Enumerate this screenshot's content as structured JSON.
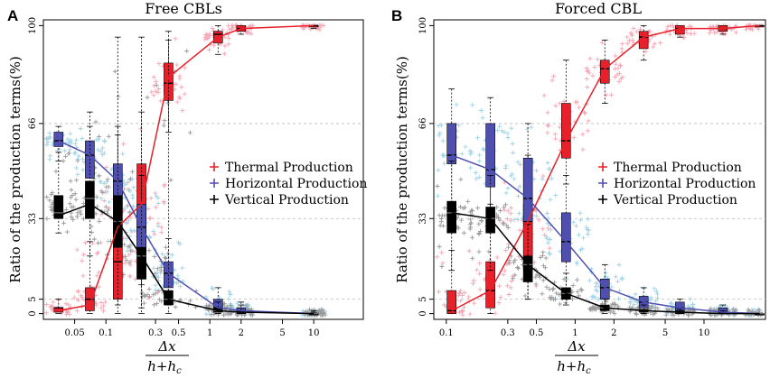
{
  "colors": {
    "thermal": "#e8202a",
    "horizontal": "#4f4fb0",
    "vertical": "#000000",
    "thermal_scatter": "#f4a6b4",
    "horizontal_scatter": "#9fd3e6",
    "vertical_scatter": "#999999",
    "grid": "#bbbbbb"
  },
  "chart_data": [
    {
      "panel_letter": "A",
      "type": "box-line",
      "title": "Free CBLs",
      "xlabel_numerator": "Δx",
      "xlabel_denominator": "h+h",
      "xlabel_subscript": "c",
      "ylabel": "Ratio of the production terms(%)",
      "x_scale": "log",
      "xlim": [
        0.025,
        30
      ],
      "ylim": [
        -2,
        102
      ],
      "yticks": [
        0,
        5,
        33,
        66,
        100
      ],
      "ytick_labels": [
        "0",
        "5",
        "33",
        "66",
        "100"
      ],
      "xticks": [
        0.05,
        0.1,
        0.3,
        0.5,
        1,
        2,
        5,
        10
      ],
      "xtick_labels": [
        "0.05",
        "0.1",
        "0.3",
        "0.5",
        "1",
        "2",
        "5",
        "10"
      ],
      "legend": {
        "position": "center-right",
        "entries": [
          "Thermal Production",
          "Horizontal Production",
          "Vertical Production"
        ]
      },
      "x": [
        0.035,
        0.07,
        0.13,
        0.22,
        0.4,
        1.2,
        2.0,
        10
      ],
      "series": [
        {
          "name": "Thermal Production",
          "values": [
            1,
            3,
            30,
            38,
            82,
            96,
            99,
            100
          ],
          "boxes": [
            [
              0,
              0.5,
              2,
              2,
              5
            ],
            [
              0,
              1,
              5,
              9,
              25
            ],
            [
              0,
              5,
              18,
              45,
              65
            ],
            [
              0,
              12,
              30,
              52,
              70
            ],
            [
              63,
              74,
              80,
              87,
              98
            ],
            [
              90,
              94,
              97,
              98,
              100
            ],
            [
              97,
              98,
              99,
              100,
              100
            ],
            [
              99,
              100,
              100,
              100,
              100
            ]
          ]
        },
        {
          "name": "Horizontal Production",
          "values": [
            60,
            55,
            46,
            30,
            14,
            2,
            1,
            0
          ],
          "boxes": [
            [
              53,
              58,
              60,
              63,
              65
            ],
            [
              40,
              47,
              55,
              60,
              65
            ],
            [
              25,
              35,
              46,
              52,
              62
            ],
            [
              10,
              21,
              30,
              38,
              48
            ],
            [
              3,
              9,
              14,
              18,
              26
            ],
            [
              0,
              1,
              2,
              5,
              9
            ],
            [
              0,
              0.5,
              1,
              2,
              4
            ],
            [
              0,
              0,
              0,
              0,
              1
            ]
          ]
        },
        {
          "name": "Vertical Production",
          "values": [
            34,
            38,
            32,
            20,
            5,
            1,
            0.5,
            0
          ],
          "boxes": [
            [
              28,
              33,
              35,
              41,
              56
            ],
            [
              20,
              33,
              40,
              46,
              70
            ],
            [
              3,
              23,
              32,
              41,
              96
            ],
            [
              2,
              12,
              20,
              23,
              96
            ],
            [
              0,
              3,
              5,
              8,
              95
            ],
            [
              0,
              0.5,
              1,
              2,
              4
            ],
            [
              0,
              0,
              0.5,
              1,
              3
            ],
            [
              0,
              0,
              0,
              0,
              0.5
            ]
          ]
        }
      ]
    },
    {
      "panel_letter": "B",
      "type": "box-line",
      "title": "Forced CBL",
      "xlabel_numerator": "Δx",
      "xlabel_denominator": "h+h",
      "xlabel_subscript": "c",
      "ylabel": "Ratio of the production terms(%)",
      "x_scale": "log",
      "xlim": [
        0.08,
        30
      ],
      "ylim": [
        -2,
        102
      ],
      "yticks": [
        0,
        5,
        33,
        66,
        100
      ],
      "ytick_labels": [
        "0",
        "5",
        "33",
        "66",
        "100"
      ],
      "xticks": [
        0.1,
        0.3,
        0.5,
        1,
        2,
        5,
        10
      ],
      "xtick_labels": [
        "0.1",
        "0.3",
        "0.5",
        "1",
        "2",
        "5",
        "10"
      ],
      "legend": {
        "position": "center-right",
        "entries": [
          "Thermal Production",
          "Horizontal Production",
          "Vertical Production"
        ]
      },
      "x": [
        0.11,
        0.22,
        0.43,
        0.85,
        1.7,
        3.4,
        6.5,
        14,
        27
      ],
      "series": [
        {
          "name": "Thermal Production",
          "values": [
            1,
            8,
            32,
            60,
            85,
            96,
            99,
            99,
            100
          ],
          "boxes": [
            [
              0,
              0,
              1,
              8,
              22
            ],
            [
              0,
              2,
              8,
              18,
              38
            ],
            [
              5,
              15,
              32,
              38,
              55
            ],
            [
              45,
              54,
              60,
              73,
              88
            ],
            [
              73,
              80,
              85,
              88,
              95
            ],
            [
              88,
              92,
              96,
              98,
              100
            ],
            [
              96,
              97,
              99,
              100,
              100
            ],
            [
              97,
              98,
              99,
              100,
              100
            ],
            [
              100,
              100,
              100,
              100,
              100
            ]
          ]
        },
        {
          "name": "Horizontal Production",
          "values": [
            55,
            50,
            40,
            25,
            9,
            4,
            2,
            0.5,
            0
          ],
          "boxes": [
            [
              33,
              52,
              55,
              66,
              78
            ],
            [
              30,
              44,
              50,
              66,
              75
            ],
            [
              20,
              32,
              40,
              54,
              66
            ],
            [
              5,
              18,
              25,
              35,
              48
            ],
            [
              2,
              5,
              9,
              12,
              17
            ],
            [
              0,
              2,
              4,
              6,
              9
            ],
            [
              0,
              0.5,
              2,
              4,
              5
            ],
            [
              0,
              0,
              0.5,
              2,
              3
            ],
            [
              0,
              0,
              0,
              0,
              0
            ]
          ]
        },
        {
          "name": "Vertical Production",
          "values": [
            35,
            33,
            17,
            7,
            2,
            1,
            0.5,
            0,
            0
          ],
          "boxes": [
            [
              15,
              28,
              35,
              39,
              53
            ],
            [
              15,
              28,
              33,
              37,
              48
            ],
            [
              5,
              11,
              17,
              20,
              31
            ],
            [
              3,
              5,
              7,
              9,
              14
            ],
            [
              0,
              1,
              2,
              3,
              5
            ],
            [
              0,
              0.5,
              1,
              1.5,
              3
            ],
            [
              0,
              0,
              0.5,
              1,
              1.5
            ],
            [
              0,
              0,
              0,
              0.5,
              1
            ],
            [
              0,
              0,
              0,
              0,
              0
            ]
          ]
        }
      ]
    }
  ]
}
